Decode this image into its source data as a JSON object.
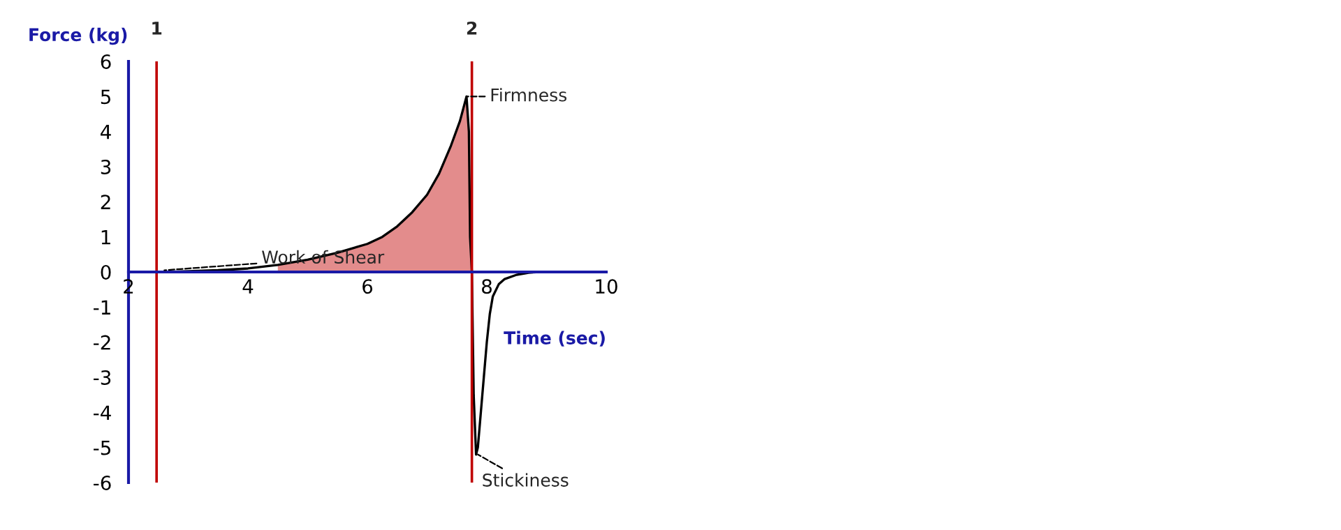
{
  "chart_data": {
    "type": "line",
    "xlabel": "Time (sec)",
    "ylabel": "Force (kg)",
    "series": [
      {
        "type": "area",
        "color": "#c00000",
        "x": [
          4.5,
          5,
          5.5,
          6,
          6.25,
          6.5,
          6.75,
          7,
          7.2,
          7.4,
          7.55,
          7.66,
          7.7,
          7.72,
          7.75
        ],
        "values": [
          0.2,
          0.35,
          0.55,
          0.8,
          1.0,
          1.3,
          1.7,
          2.2,
          2.8,
          3.6,
          4.3,
          5.0,
          4.0,
          1.0,
          0
        ]
      },
      {
        "type": "line",
        "color": "#000000",
        "x": [
          2.5,
          3,
          3.5,
          4,
          4.5,
          5,
          5.5,
          6,
          6.25,
          6.5,
          6.75,
          7,
          7.2,
          7.4,
          7.55,
          7.66,
          7.7,
          7.72,
          7.75,
          7.78,
          7.82,
          7.85,
          7.9,
          7.95,
          8.0,
          8.05,
          8.1,
          8.2,
          8.3,
          8.5,
          8.7,
          8.9
        ],
        "values": [
          0,
          0.02,
          0.05,
          0.1,
          0.2,
          0.35,
          0.55,
          0.8,
          1.0,
          1.3,
          1.7,
          2.2,
          2.8,
          3.6,
          4.3,
          5.0,
          4.0,
          1.0,
          0,
          -3.5,
          -5.2,
          -5.0,
          -4.0,
          -3.0,
          -2.0,
          -1.2,
          -0.7,
          -0.35,
          -0.2,
          -0.08,
          -0.02,
          0
        ]
      }
    ],
    "xlim": [
      2,
      10
    ],
    "ylim": [
      -6,
      6
    ],
    "xticks": [
      2,
      4,
      6,
      8,
      10
    ],
    "yticks": [
      -6,
      -5,
      -4,
      -3,
      -2,
      -1,
      0,
      1,
      2,
      3,
      4,
      5,
      6
    ],
    "ref_lines": [
      {
        "axis": "x",
        "value": 2.47,
        "color": "#c00000"
      },
      {
        "axis": "x",
        "value": 7.75,
        "color": "#c00000"
      }
    ],
    "annotations": [
      "1",
      "2",
      {
        "text": "Firmness",
        "x": 7.66,
        "y": 5.0
      },
      {
        "text": "Work of Shear",
        "x": 2.6,
        "y": 0.05
      },
      {
        "text": "Stickiness",
        "x": 7.85,
        "y": -5.2
      }
    ],
    "grid": false,
    "legend": false
  }
}
